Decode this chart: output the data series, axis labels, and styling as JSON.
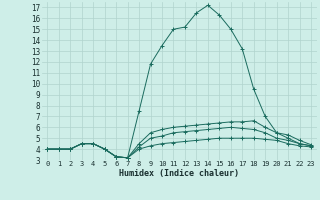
{
  "title": "",
  "xlabel": "Humidex (Indice chaleur)",
  "bg_color": "#ceeee8",
  "grid_color": "#b0d4ce",
  "line_color": "#1a6b5e",
  "xlim": [
    -0.5,
    23.5
  ],
  "ylim": [
    3.0,
    17.5
  ],
  "xticks": [
    0,
    1,
    2,
    3,
    4,
    5,
    6,
    7,
    8,
    9,
    10,
    11,
    12,
    13,
    14,
    15,
    16,
    17,
    18,
    19,
    20,
    21,
    22,
    23
  ],
  "yticks": [
    3,
    4,
    5,
    6,
    7,
    8,
    9,
    10,
    11,
    12,
    13,
    14,
    15,
    16,
    17
  ],
  "series": [
    [
      4.0,
      4.0,
      4.0,
      4.5,
      4.5,
      4.0,
      3.3,
      3.2,
      7.5,
      11.8,
      13.5,
      15.0,
      15.2,
      16.5,
      17.2,
      16.3,
      15.0,
      13.2,
      9.5,
      7.0,
      5.5,
      5.0,
      4.5,
      4.3
    ],
    [
      4.0,
      4.0,
      4.0,
      4.5,
      4.5,
      4.0,
      3.3,
      3.2,
      4.5,
      5.5,
      5.8,
      6.0,
      6.1,
      6.2,
      6.3,
      6.4,
      6.5,
      6.5,
      6.6,
      6.0,
      5.5,
      5.3,
      4.8,
      4.4
    ],
    [
      4.0,
      4.0,
      4.0,
      4.5,
      4.5,
      4.0,
      3.3,
      3.2,
      4.2,
      5.0,
      5.2,
      5.5,
      5.6,
      5.7,
      5.8,
      5.9,
      6.0,
      5.9,
      5.8,
      5.5,
      5.0,
      4.8,
      4.5,
      4.3
    ],
    [
      4.0,
      4.0,
      4.0,
      4.5,
      4.5,
      4.0,
      3.3,
      3.2,
      4.0,
      4.3,
      4.5,
      4.6,
      4.7,
      4.8,
      4.9,
      5.0,
      5.0,
      5.0,
      5.0,
      4.9,
      4.8,
      4.5,
      4.3,
      4.2
    ]
  ],
  "xlabel_fontsize": 6.0,
  "ytick_fontsize": 5.5,
  "xtick_fontsize": 5.0
}
